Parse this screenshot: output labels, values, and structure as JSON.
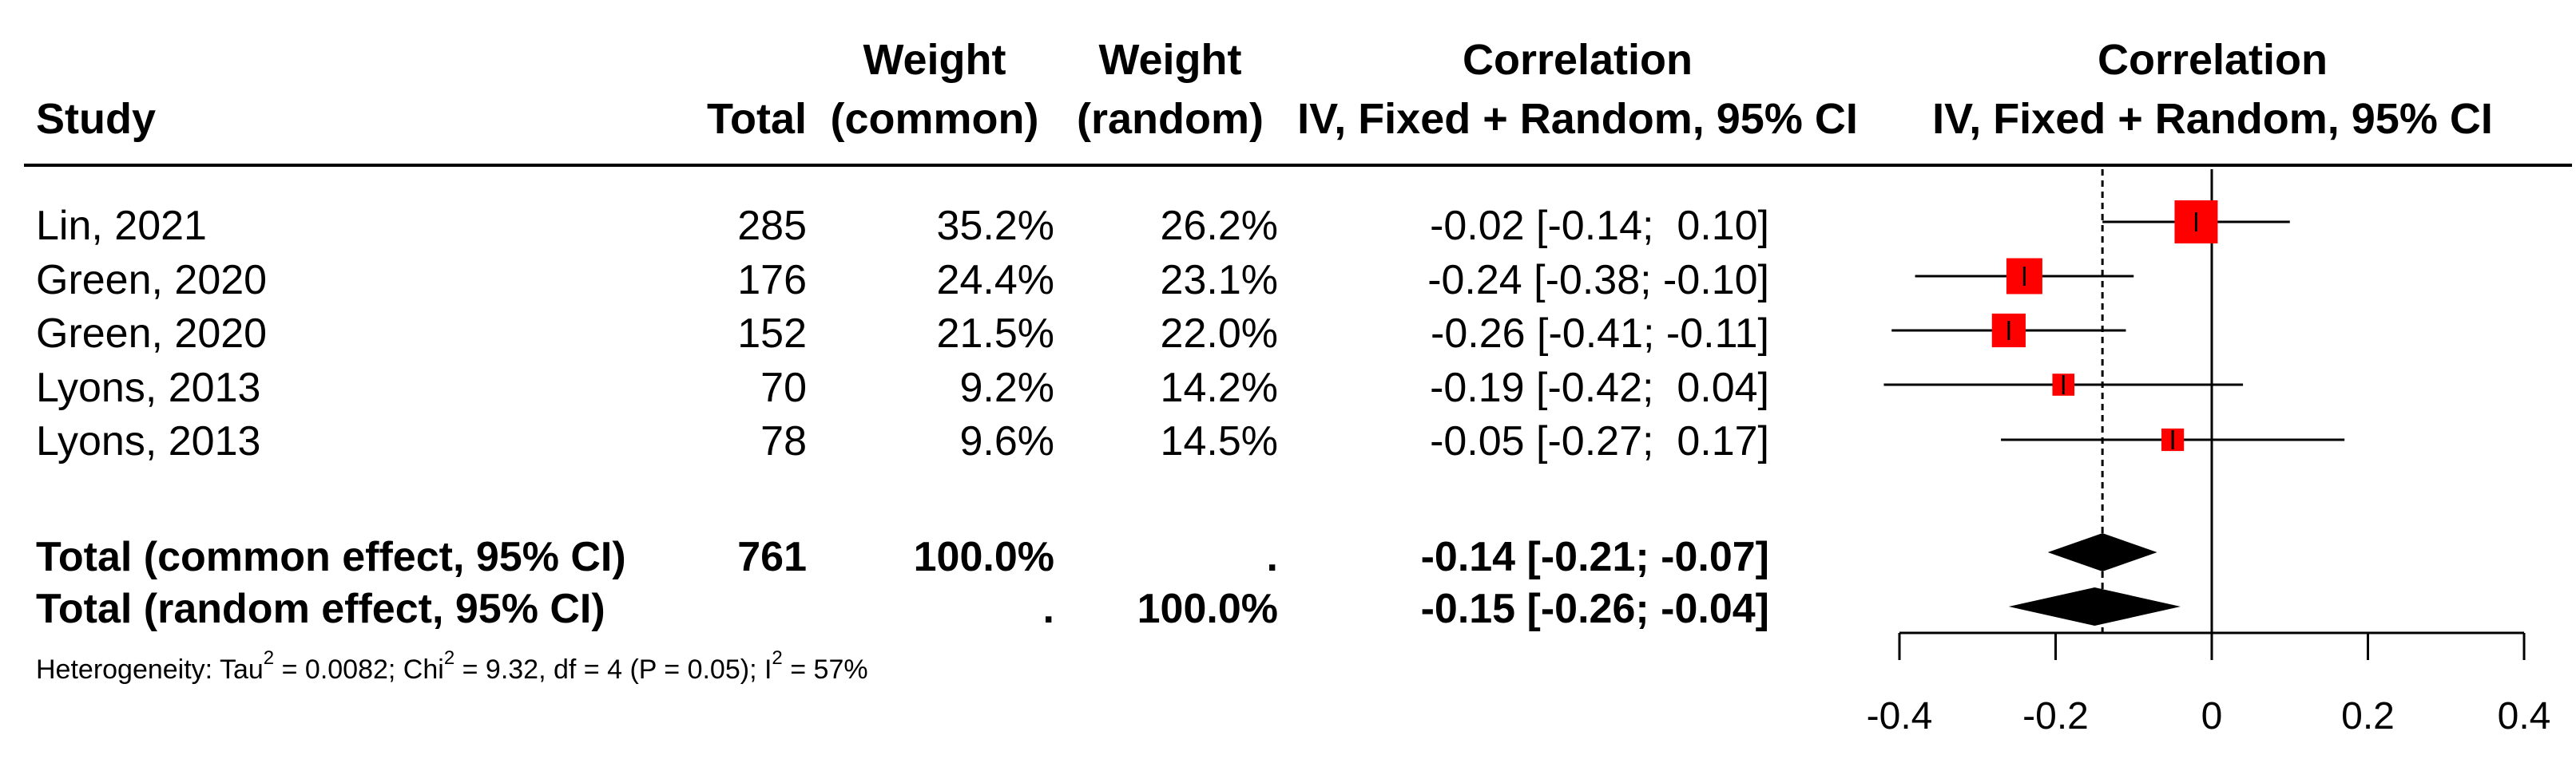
{
  "headers": {
    "study": "Study",
    "total": "Total",
    "weight_common_1": "Weight",
    "weight_common_2": "(common)",
    "weight_random_1": "Weight",
    "weight_random_2": "(random)",
    "corr_1": "Correlation",
    "corr_2": "IV, Fixed + Random, 95% CI",
    "plot_1": "Correlation",
    "plot_2": "IV, Fixed + Random, 95% CI"
  },
  "studies": [
    {
      "study": "Lin, 2021",
      "total": "285",
      "w_common": "35.2%",
      "w_random": "26.2%",
      "ci_text": "-0.02 [-0.14;  0.10]"
    },
    {
      "study": "Green, 2020",
      "total": "176",
      "w_common": "24.4%",
      "w_random": "23.1%",
      "ci_text": "-0.24 [-0.38; -0.10]"
    },
    {
      "study": "Green, 2020",
      "total": "152",
      "w_common": "21.5%",
      "w_random": "22.0%",
      "ci_text": "-0.26 [-0.41; -0.11]"
    },
    {
      "study": "Lyons, 2013",
      "total": "70",
      "w_common": "9.2%",
      "w_random": "14.2%",
      "ci_text": "-0.19 [-0.42;  0.04]"
    },
    {
      "study": "Lyons, 2013",
      "total": "78",
      "w_common": "9.6%",
      "w_random": "14.5%",
      "ci_text": "-0.05 [-0.27;  0.17]"
    }
  ],
  "totals": [
    {
      "label": "Total (common effect, 95% CI)",
      "total": "761",
      "w_common": "100.0%",
      "w_random": ".",
      "ci_text": "-0.14 [-0.21; -0.07]"
    },
    {
      "label": "Total (random effect, 95% CI)",
      "total": "",
      "w_common": ".",
      "w_random": "100.0%",
      "ci_text": "-0.15 [-0.26; -0.04]"
    }
  ],
  "heterogeneity": {
    "prefix": "Heterogeneity: Tau",
    "tau_sup": "2",
    "tau_val": " = 0.0082; Chi",
    "chi_sup": "2",
    "chi_val": " = 9.32, df = 4 (P = 0.05); I",
    "i_sup": "2",
    "i_val": " = 57%"
  },
  "colors": {
    "marker": "#ff0000",
    "line": "#000000",
    "diamond": "#000000"
  },
  "chart_data": {
    "type": "forest",
    "xlim": [
      -0.4,
      0.4
    ],
    "x_ticks": [
      -0.4,
      -0.2,
      0,
      0.2,
      0.4
    ],
    "x_tick_labels": [
      "-0.4",
      "-0.2",
      "0",
      "0.2",
      "0.4"
    ],
    "null_line": 0,
    "pooled_line": -0.14,
    "studies": [
      {
        "est": -0.02,
        "lo": -0.14,
        "hi": 0.1,
        "weight": 35.2
      },
      {
        "est": -0.24,
        "lo": -0.38,
        "hi": -0.1,
        "weight": 24.4
      },
      {
        "est": -0.26,
        "lo": -0.41,
        "hi": -0.11,
        "weight": 21.5
      },
      {
        "est": -0.19,
        "lo": -0.42,
        "hi": 0.04,
        "weight": 9.2
      },
      {
        "est": -0.05,
        "lo": -0.27,
        "hi": 0.17,
        "weight": 9.6
      }
    ],
    "pooled": [
      {
        "model": "common",
        "est": -0.14,
        "lo": -0.21,
        "hi": -0.07
      },
      {
        "model": "random",
        "est": -0.15,
        "lo": -0.26,
        "hi": -0.04
      }
    ]
  }
}
